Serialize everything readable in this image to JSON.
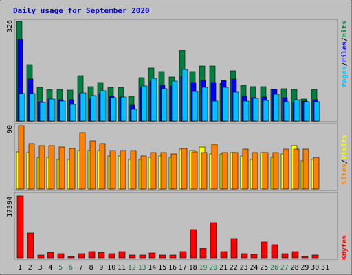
{
  "chart_data": {
    "type": "bar",
    "title": "Daily usage for September 2020",
    "categories": [
      "1",
      "2",
      "3",
      "4",
      "5",
      "6",
      "7",
      "8",
      "9",
      "10",
      "11",
      "12",
      "13",
      "14",
      "15",
      "16",
      "17",
      "18",
      "19",
      "20",
      "21",
      "22",
      "23",
      "24",
      "25",
      "26",
      "27",
      "28",
      "29",
      "30",
      "31"
    ],
    "weekend_days": [
      "5",
      "6",
      "12",
      "13",
      "19",
      "20",
      "26",
      "27"
    ],
    "panels": [
      {
        "name": "hits-files-pages",
        "ymax_label": "326",
        "ylim": [
          0,
          326
        ],
        "series": [
          {
            "name": "Hits",
            "color": "#008040",
            "values": [
              326,
              184,
              110,
              104,
              104,
              102,
              148,
              112,
              125,
              110,
              110,
              82,
              142,
              174,
              162,
              144,
              231,
              161,
              180,
              180,
              123,
              165,
              118,
              113,
              112,
              103,
              105,
              104,
              73,
              104,
              null
            ]
          },
          {
            "name": "Files",
            "color": "#0000ff",
            "values": [
              268,
              137,
              64,
              73,
              70,
              70,
              90,
              73,
              90,
              82,
              78,
              52,
              110,
              131,
              116,
              114,
              146,
              125,
              132,
              125,
              132,
              138,
              80,
              77,
              79,
              103,
              77,
              60,
              66,
              70,
              null
            ]
          },
          {
            "name": "Pages",
            "color": "#00c0ff",
            "values": [
              90,
              90,
              60,
              72,
              66,
              53,
              92,
              84,
              98,
              76,
              78,
              38,
              115,
              139,
              105,
              130,
              168,
              97,
              111,
              66,
              110,
              95,
              66,
              75,
              67,
              87,
              62,
              70,
              64,
              64,
              null
            ]
          }
        ]
      },
      {
        "name": "visits-sites",
        "ymax_label": "90",
        "ylim": [
          0,
          90
        ],
        "series": [
          {
            "name": "Visits",
            "color": "#ffff00",
            "values": [
              53,
              52,
              45,
              45,
              42,
              42,
              55,
              55,
              55,
              47,
              47,
              42,
              42,
              45,
              47,
              45,
              57,
              55,
              60,
              50,
              50,
              52,
              47,
              42,
              52,
              45,
              50,
              62,
              40,
              42,
              null
            ]
          },
          {
            "name": "Sites",
            "color": "#ff8000",
            "values": [
              90,
              65,
              62,
              62,
              60,
              58,
              80,
              68,
              65,
              55,
              55,
              55,
              47,
              52,
              52,
              50,
              58,
              53,
              52,
              64,
              52,
              52,
              57,
              52,
              52,
              52,
              57,
              57,
              57,
              45,
              null
            ]
          }
        ]
      },
      {
        "name": "kbytes",
        "ymax_label": "17394",
        "ylim": [
          0,
          17394
        ],
        "series": [
          {
            "name": "KBytes",
            "color": "#ff0000",
            "values": [
              17394,
              6900,
              850,
              1600,
              1200,
              450,
              1100,
              1800,
              1600,
              1150,
              1700,
              800,
              850,
              1350,
              750,
              800,
              1800,
              7900,
              2800,
              9900,
              1800,
              5400,
              1100,
              1000,
              4400,
              3600,
              1100,
              1800,
              340,
              800,
              null
            ]
          }
        ]
      }
    ]
  },
  "legends": {
    "top": [
      {
        "text": "Pages",
        "color": "#00c0ff"
      },
      {
        "text": "/",
        "color": "#000000"
      },
      {
        "text": "Files",
        "color": "#0000ff"
      },
      {
        "text": "/",
        "color": "#000000"
      },
      {
        "text": "Hits",
        "color": "#008040"
      }
    ],
    "middle": [
      {
        "text": "Sites",
        "color": "#ff8000"
      },
      {
        "text": "/",
        "color": "#000000"
      },
      {
        "text": "Visits",
        "color": "#ffff00"
      }
    ],
    "bottom": [
      {
        "text": "KBytes",
        "color": "#ff0000"
      }
    ]
  },
  "colors": {
    "background": "#c0c0c0",
    "title": "#0000c0",
    "weekday_label": "#000000",
    "weekend_label": "#008040"
  }
}
